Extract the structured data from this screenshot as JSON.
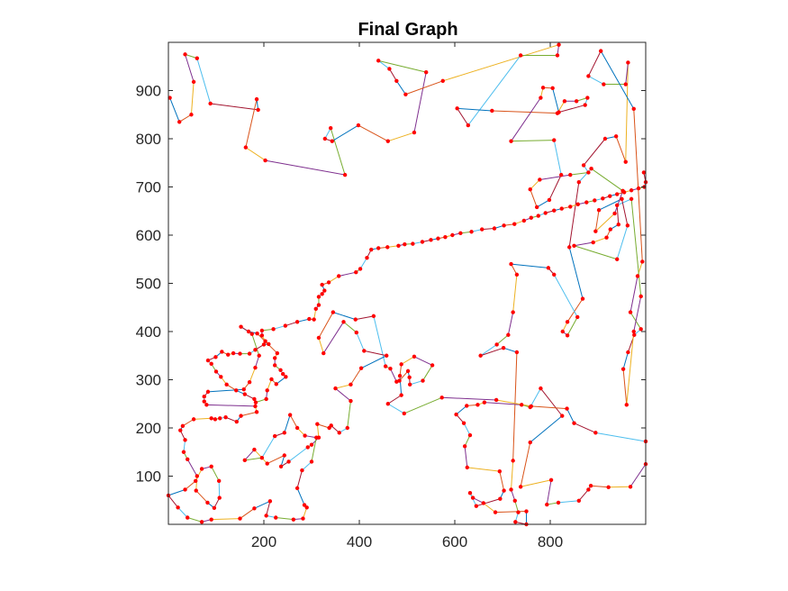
{
  "chart_data": {
    "type": "line",
    "title": "Final Graph",
    "xlabel": "",
    "ylabel": "",
    "xlim": [
      0,
      1000
    ],
    "ylim": [
      0,
      1000
    ],
    "xticks": [
      200,
      400,
      600,
      800
    ],
    "yticks": [
      100,
      200,
      300,
      400,
      500,
      600,
      700,
      800,
      900
    ],
    "grid": false,
    "box": true,
    "marker_color": "#ff0000",
    "colors": [
      "#0072bd",
      "#d95319",
      "#edb120",
      "#7e2f8e",
      "#77ac30",
      "#4dbeee",
      "#a2142f"
    ],
    "points": [
      [
        3,
        885
      ],
      [
        23,
        835
      ],
      [
        48,
        850
      ],
      [
        53,
        918
      ],
      [
        35,
        975
      ],
      [
        60,
        967
      ],
      [
        88,
        873
      ],
      [
        188,
        860
      ],
      [
        185,
        882
      ],
      [
        162,
        782
      ],
      [
        203,
        755
      ],
      [
        370,
        725
      ],
      [
        340,
        822
      ],
      [
        328,
        800
      ],
      [
        343,
        795
      ],
      [
        398,
        828
      ],
      [
        460,
        795
      ],
      [
        515,
        813
      ],
      [
        540,
        938
      ],
      [
        440,
        962
      ],
      [
        463,
        945
      ],
      [
        478,
        920
      ],
      [
        497,
        892
      ],
      [
        575,
        920
      ],
      [
        818,
        995
      ],
      [
        815,
        973
      ],
      [
        738,
        973
      ],
      [
        628,
        828
      ],
      [
        605,
        863
      ],
      [
        678,
        858
      ],
      [
        815,
        853
      ],
      [
        830,
        878
      ],
      [
        855,
        878
      ],
      [
        878,
        885
      ],
      [
        873,
        870
      ],
      [
        818,
        855
      ],
      [
        805,
        905
      ],
      [
        785,
        906
      ],
      [
        780,
        885
      ],
      [
        718,
        795
      ],
      [
        808,
        797
      ],
      [
        823,
        725
      ],
      [
        798,
        673
      ],
      [
        772,
        658
      ],
      [
        758,
        695
      ],
      [
        778,
        715
      ],
      [
        842,
        725
      ],
      [
        880,
        730
      ],
      [
        870,
        745
      ],
      [
        915,
        800
      ],
      [
        938,
        805
      ],
      [
        958,
        752
      ],
      [
        963,
        958
      ],
      [
        958,
        913
      ],
      [
        912,
        913
      ],
      [
        880,
        930
      ],
      [
        906,
        982
      ],
      [
        975,
        862
      ],
      [
        993,
        545
      ],
      [
        983,
        515
      ],
      [
        968,
        440
      ],
      [
        990,
        405
      ],
      [
        976,
        393
      ],
      [
        963,
        357
      ],
      [
        953,
        322
      ],
      [
        960,
        248
      ],
      [
        975,
        400
      ],
      [
        990,
        473
      ],
      [
        970,
        675
      ],
      [
        940,
        662
      ],
      [
        943,
        622
      ],
      [
        926,
        612
      ],
      [
        918,
        595
      ],
      [
        890,
        585
      ],
      [
        850,
        578
      ],
      [
        940,
        550
      ],
      [
        962,
        620
      ],
      [
        950,
        675
      ],
      [
        902,
        652
      ],
      [
        895,
        608
      ],
      [
        935,
        645
      ],
      [
        952,
        692
      ],
      [
        886,
        738
      ],
      [
        860,
        710
      ],
      [
        840,
        575
      ],
      [
        868,
        468
      ],
      [
        836,
        420
      ],
      [
        826,
        400
      ],
      [
        836,
        392
      ],
      [
        857,
        430
      ],
      [
        808,
        518
      ],
      [
        796,
        532
      ],
      [
        718,
        540
      ],
      [
        730,
        518
      ],
      [
        722,
        440
      ],
      [
        712,
        393
      ],
      [
        688,
        373
      ],
      [
        654,
        350
      ],
      [
        702,
        366
      ],
      [
        730,
        357
      ],
      [
        722,
        132
      ],
      [
        718,
        72
      ],
      [
        726,
        49
      ],
      [
        733,
        25
      ],
      [
        727,
        5
      ],
      [
        750,
        0
      ],
      [
        750,
        27
      ],
      [
        685,
        25
      ],
      [
        660,
        44
      ],
      [
        638,
        55
      ],
      [
        632,
        65
      ],
      [
        645,
        38
      ],
      [
        695,
        53
      ],
      [
        703,
        70
      ],
      [
        694,
        110
      ],
      [
        626,
        118
      ],
      [
        621,
        162
      ],
      [
        632,
        185
      ],
      [
        619,
        210
      ],
      [
        603,
        228
      ],
      [
        625,
        246
      ],
      [
        648,
        248
      ],
      [
        662,
        253
      ],
      [
        740,
        248
      ],
      [
        758,
        243
      ],
      [
        780,
        282
      ],
      [
        825,
        225
      ],
      [
        758,
        170
      ],
      [
        738,
        78
      ],
      [
        802,
        92
      ],
      [
        793,
        41
      ],
      [
        817,
        45
      ],
      [
        860,
        49
      ],
      [
        880,
        72
      ],
      [
        885,
        80
      ],
      [
        922,
        77
      ],
      [
        968,
        78
      ],
      [
        1000,
        125
      ],
      [
        1000,
        172
      ],
      [
        895,
        190
      ],
      [
        850,
        210
      ],
      [
        835,
        240
      ],
      [
        760,
        245
      ],
      [
        687,
        258
      ],
      [
        573,
        263
      ],
      [
        494,
        230
      ],
      [
        460,
        250
      ],
      [
        488,
        268
      ],
      [
        485,
        308
      ],
      [
        488,
        332
      ],
      [
        515,
        348
      ],
      [
        553,
        330
      ],
      [
        533,
        298
      ],
      [
        506,
        290
      ],
      [
        505,
        305
      ],
      [
        502,
        318
      ],
      [
        484,
        298
      ],
      [
        478,
        296
      ],
      [
        465,
        323
      ],
      [
        455,
        328
      ],
      [
        430,
        432
      ],
      [
        392,
        425
      ],
      [
        345,
        440
      ],
      [
        315,
        387
      ],
      [
        325,
        355
      ],
      [
        367,
        420
      ],
      [
        394,
        398
      ],
      [
        410,
        360
      ],
      [
        457,
        350
      ],
      [
        404,
        324
      ],
      [
        382,
        290
      ],
      [
        350,
        282
      ],
      [
        382,
        256
      ],
      [
        375,
        200
      ],
      [
        358,
        190
      ],
      [
        341,
        205
      ],
      [
        337,
        200
      ],
      [
        312,
        208
      ],
      [
        315,
        180
      ],
      [
        300,
        165
      ],
      [
        292,
        160
      ],
      [
        252,
        130
      ],
      [
        236,
        120
      ],
      [
        243,
        143
      ],
      [
        207,
        126
      ],
      [
        180,
        155
      ],
      [
        160,
        133
      ],
      [
        196,
        138
      ],
      [
        223,
        183
      ],
      [
        243,
        190
      ],
      [
        255,
        227
      ],
      [
        270,
        200
      ],
      [
        286,
        184
      ],
      [
        310,
        180
      ],
      [
        300,
        130
      ],
      [
        280,
        112
      ],
      [
        270,
        75
      ],
      [
        285,
        40
      ],
      [
        290,
        35
      ],
      [
        282,
        12
      ],
      [
        262,
        10
      ],
      [
        225,
        14
      ],
      [
        205,
        18
      ],
      [
        213,
        48
      ],
      [
        180,
        33
      ],
      [
        150,
        12
      ],
      [
        90,
        10
      ],
      [
        70,
        5
      ],
      [
        40,
        14
      ],
      [
        20,
        35
      ],
      [
        0,
        60
      ],
      [
        35,
        72
      ],
      [
        57,
        90
      ],
      [
        70,
        115
      ],
      [
        90,
        120
      ],
      [
        106,
        90
      ],
      [
        107,
        55
      ],
      [
        96,
        34
      ],
      [
        82,
        45
      ],
      [
        58,
        70
      ],
      [
        60,
        100
      ],
      [
        40,
        135
      ],
      [
        32,
        150
      ],
      [
        35,
        175
      ],
      [
        25,
        195
      ],
      [
        30,
        204
      ],
      [
        53,
        218
      ],
      [
        90,
        220
      ],
      [
        98,
        218
      ],
      [
        108,
        220
      ],
      [
        120,
        222
      ],
      [
        143,
        213
      ],
      [
        152,
        225
      ],
      [
        185,
        233
      ],
      [
        182,
        245
      ],
      [
        80,
        248
      ],
      [
        75,
        255
      ],
      [
        75,
        265
      ],
      [
        83,
        275
      ],
      [
        158,
        280
      ],
      [
        170,
        295
      ],
      [
        182,
        325
      ],
      [
        190,
        350
      ],
      [
        175,
        395
      ],
      [
        152,
        410
      ],
      [
        168,
        400
      ],
      [
        186,
        396
      ],
      [
        228,
        355
      ],
      [
        223,
        345
      ],
      [
        223,
        330
      ],
      [
        235,
        320
      ],
      [
        240,
        312
      ],
      [
        246,
        306
      ],
      [
        226,
        291
      ],
      [
        216,
        301
      ],
      [
        207,
        278
      ],
      [
        205,
        260
      ],
      [
        183,
        253
      ],
      [
        180,
        260
      ],
      [
        160,
        270
      ],
      [
        142,
        278
      ],
      [
        122,
        290
      ],
      [
        110,
        306
      ],
      [
        100,
        317
      ],
      [
        90,
        333
      ],
      [
        83,
        340
      ],
      [
        99,
        347
      ],
      [
        112,
        358
      ],
      [
        125,
        352
      ],
      [
        136,
        355
      ],
      [
        150,
        354
      ],
      [
        170,
        354
      ],
      [
        182,
        362
      ],
      [
        200,
        373
      ],
      [
        210,
        374
      ],
      [
        203,
        380
      ],
      [
        196,
        392
      ],
      [
        196,
        402
      ],
      [
        220,
        405
      ],
      [
        245,
        412
      ],
      [
        270,
        420
      ],
      [
        295,
        426
      ],
      [
        305,
        425
      ],
      [
        309,
        447
      ],
      [
        315,
        455
      ],
      [
        315,
        472
      ],
      [
        322,
        478
      ],
      [
        327,
        485
      ],
      [
        322,
        497
      ],
      [
        336,
        502
      ],
      [
        357,
        515
      ],
      [
        393,
        523
      ],
      [
        402,
        530
      ],
      [
        416,
        553
      ],
      [
        425,
        570
      ],
      [
        440,
        573
      ],
      [
        459,
        575
      ],
      [
        482,
        578
      ],
      [
        495,
        581
      ],
      [
        512,
        582
      ],
      [
        532,
        586
      ],
      [
        550,
        590
      ],
      [
        565,
        593
      ],
      [
        580,
        596
      ],
      [
        595,
        600
      ],
      [
        612,
        604
      ],
      [
        635,
        607
      ],
      [
        657,
        612
      ],
      [
        683,
        614
      ],
      [
        703,
        620
      ],
      [
        725,
        623
      ],
      [
        745,
        630
      ],
      [
        760,
        636
      ],
      [
        775,
        640
      ],
      [
        790,
        646
      ],
      [
        808,
        651
      ],
      [
        824,
        655
      ],
      [
        842,
        659
      ],
      [
        858,
        664
      ],
      [
        876,
        668
      ],
      [
        893,
        672
      ],
      [
        910,
        676
      ],
      [
        925,
        681
      ],
      [
        940,
        685
      ],
      [
        955,
        689
      ],
      [
        970,
        693
      ],
      [
        985,
        697
      ],
      [
        997,
        700
      ],
      [
        1000,
        710
      ],
      [
        996,
        730
      ]
    ]
  }
}
